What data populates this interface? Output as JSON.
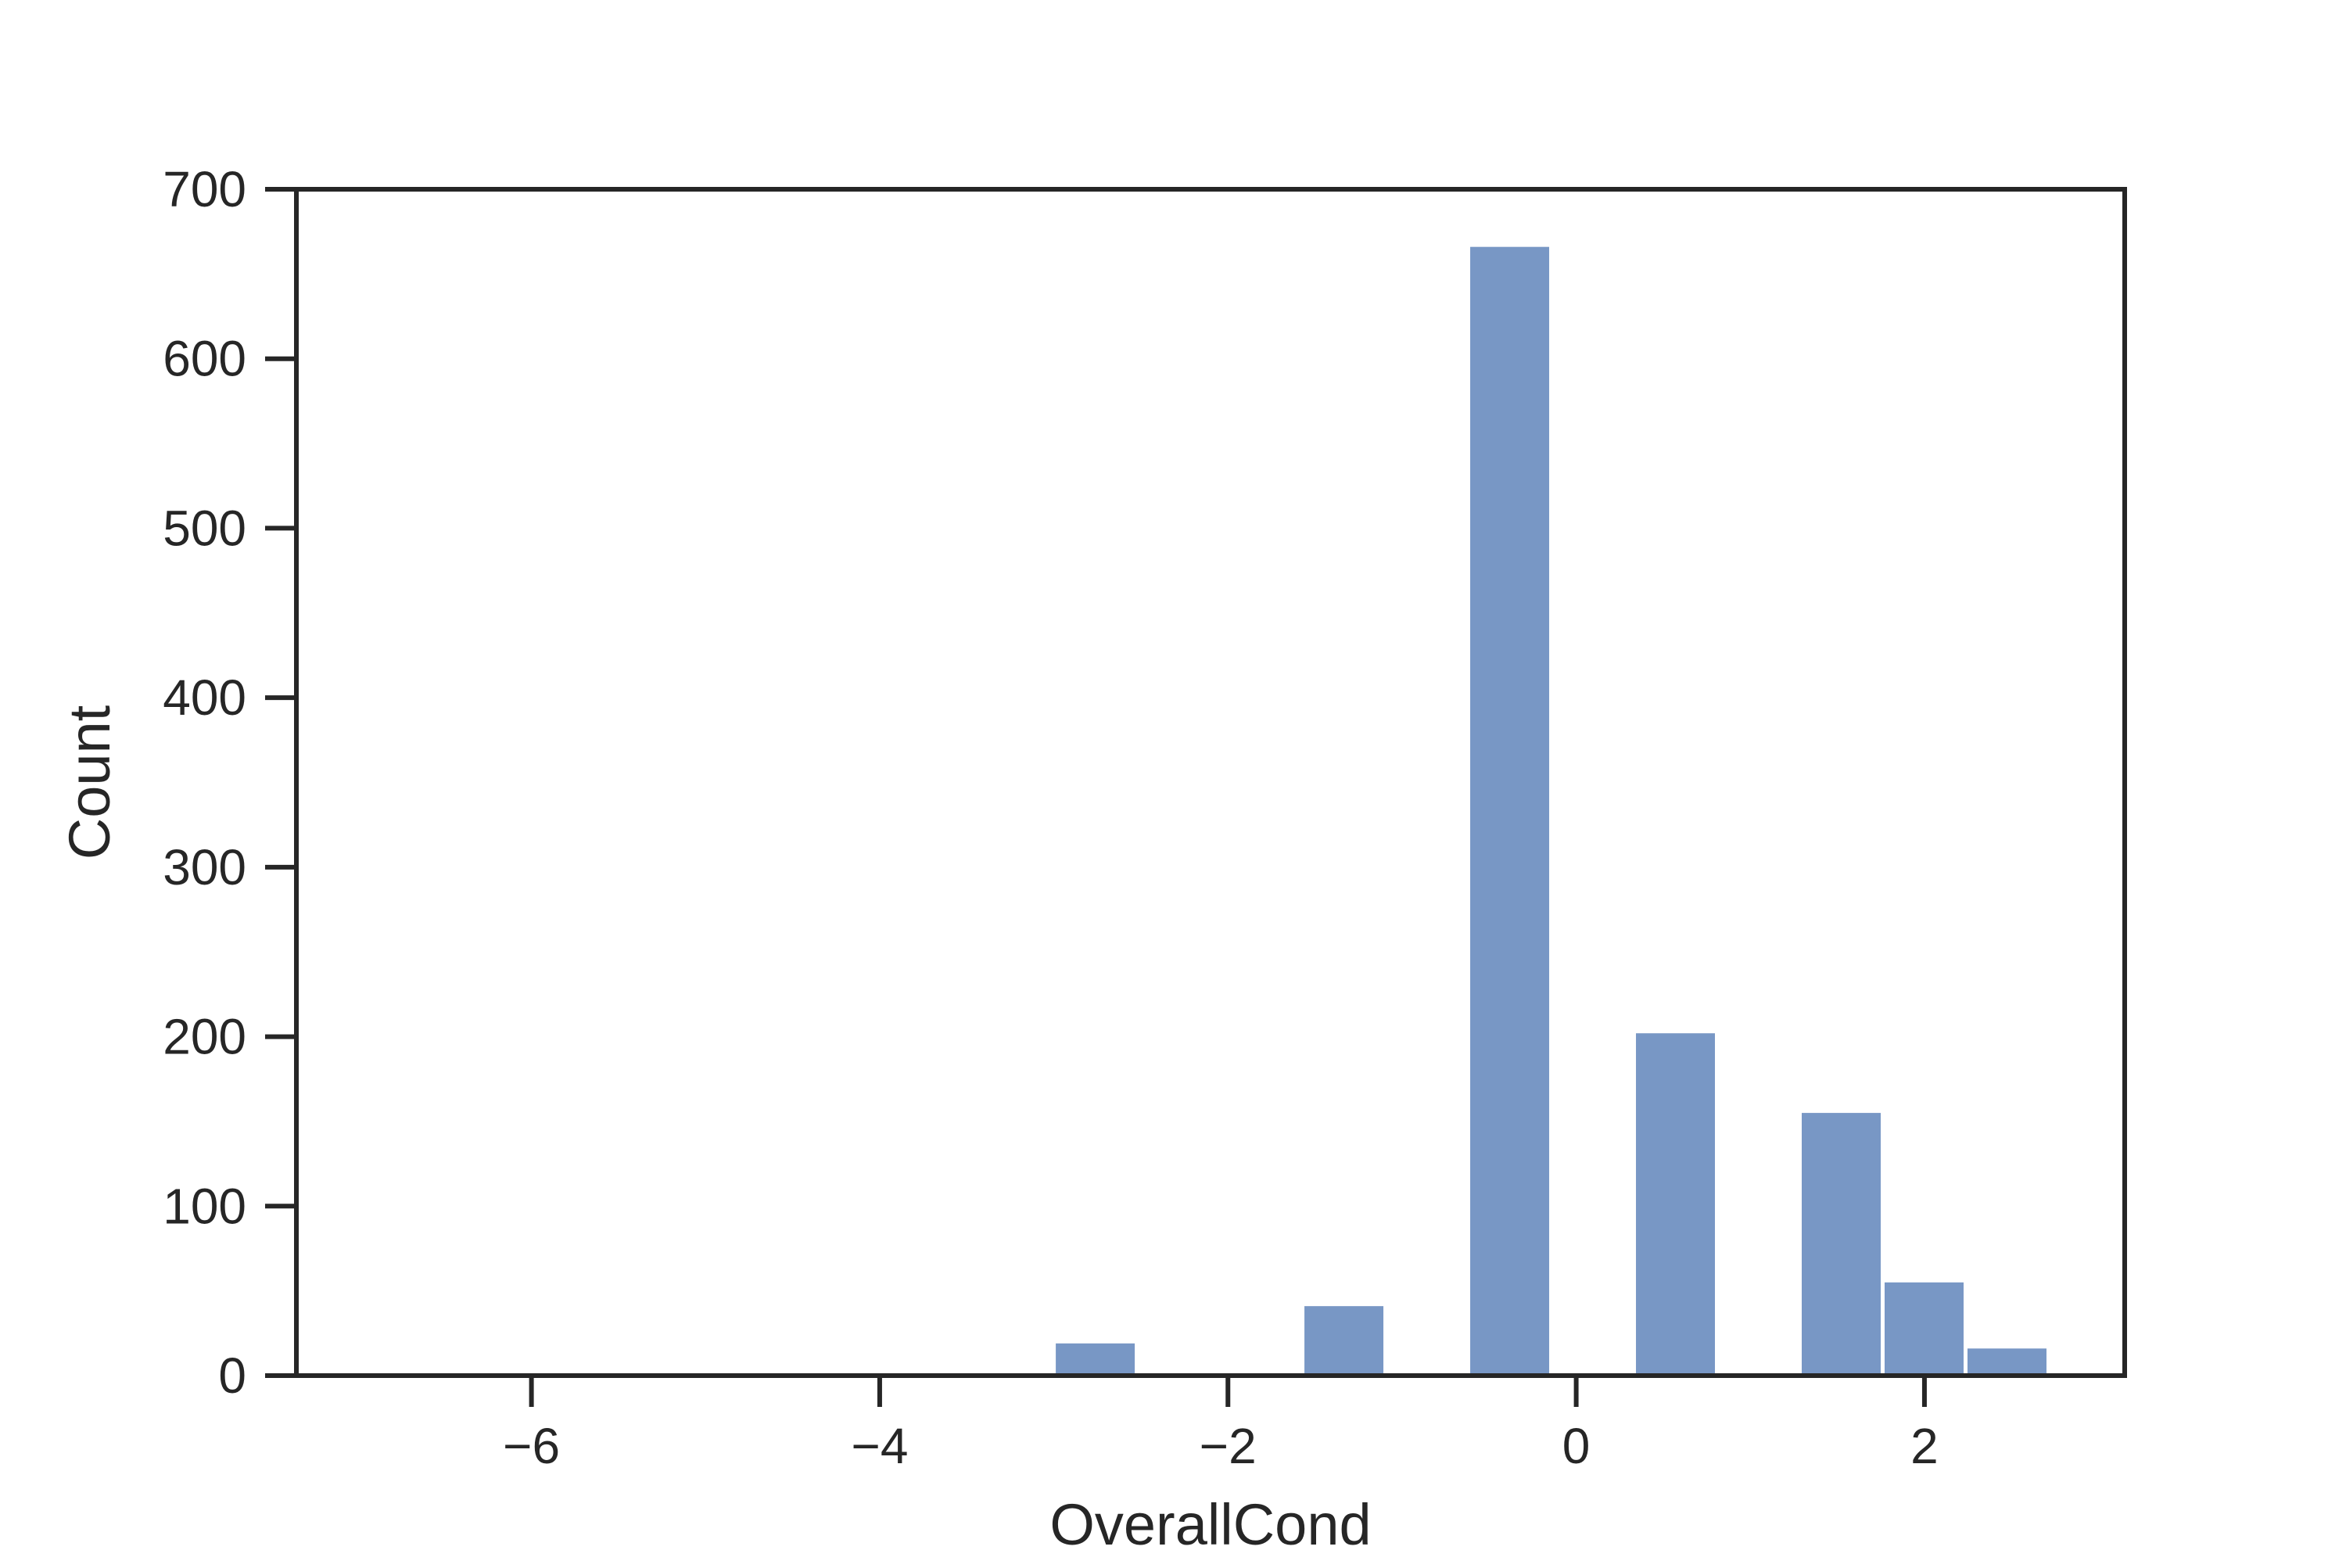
{
  "chart_data": {
    "type": "bar",
    "title": "",
    "xlabel": "OverallCond",
    "ylabel": "Count",
    "xlim": [
      -7.35,
      3.15
    ],
    "ylim": [
      0,
      700
    ],
    "grid": false,
    "bar_color": "#7897c5",
    "axis_color": "#262626",
    "background_color": "#ffffff",
    "bin_width": 0.476,
    "bins": [
      {
        "x0": -3.0,
        "x1": -2.524,
        "count": 19
      },
      {
        "x0": -1.572,
        "x1": -1.096,
        "count": 41
      },
      {
        "x0": -0.62,
        "x1": -0.144,
        "count": 666
      },
      {
        "x0": 0.332,
        "x1": 0.808,
        "count": 202
      },
      {
        "x0": 1.284,
        "x1": 1.76,
        "count": 155
      },
      {
        "x0": 1.76,
        "x1": 2.236,
        "count": 55
      },
      {
        "x0": 2.236,
        "x1": 2.712,
        "count": 16
      }
    ],
    "x_ticks": [
      {
        "value": -6,
        "label": "−6"
      },
      {
        "value": -4,
        "label": "−4"
      },
      {
        "value": -2,
        "label": "−2"
      },
      {
        "value": 0,
        "label": "0"
      },
      {
        "value": 2,
        "label": "2"
      }
    ],
    "y_ticks": [
      {
        "value": 0,
        "label": "0"
      },
      {
        "value": 100,
        "label": "100"
      },
      {
        "value": 200,
        "label": "200"
      },
      {
        "value": 300,
        "label": "300"
      },
      {
        "value": 400,
        "label": "400"
      },
      {
        "value": 500,
        "label": "500"
      },
      {
        "value": 600,
        "label": "600"
      },
      {
        "value": 700,
        "label": "700"
      }
    ]
  }
}
